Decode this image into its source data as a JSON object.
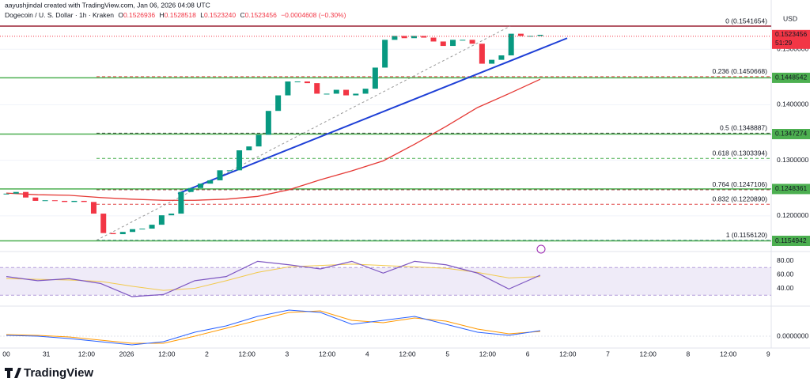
{
  "header": {
    "author_line": "aayushjindal created with TradingView.com, Jan 06, 2026 04:08 UTC",
    "symbol": "Dogecoin / U. S. Dollar · 1h · Kraken",
    "legend": [
      {
        "key": "O",
        "value": "0.1526936"
      },
      {
        "key": "H",
        "value": "0.1528518"
      },
      {
        "key": "L",
        "value": "0.1523240"
      },
      {
        "key": "C",
        "value": "0.1523456"
      }
    ],
    "change": "−0.0004608 (−0.30%)",
    "currency": "USD"
  },
  "chart_data": {
    "type": "candlestick",
    "close": [
      0.124,
      0.1243,
      0.1233,
      0.1227,
      0.1228,
      0.1227,
      0.1225,
      0.1227,
      0.1225,
      0.1204,
      0.1169,
      0.1167,
      0.1171,
      0.1176,
      0.1177,
      0.1184,
      0.1201,
      0.1204,
      0.1243,
      0.125,
      0.1258,
      0.1264,
      0.1282,
      0.1282,
      0.1318,
      0.1325,
      0.1346,
      0.1389,
      0.1417,
      0.1442,
      0.1442,
      0.1439,
      0.142,
      0.142,
      0.1427,
      0.1417,
      0.142,
      0.1429,
      0.1467,
      0.1517,
      0.1524,
      0.152,
      0.1524,
      0.1521,
      0.1514,
      0.1506,
      0.1517,
      0.1517,
      0.151,
      0.1474,
      0.1481,
      0.1489,
      0.1528,
      0.1524,
      0.1524,
      0.1526
    ],
    "up_color": "#089981",
    "down_color": "#f23645",
    "ma": {
      "color": "#e53935",
      "values": [
        0.1241,
        0.1238,
        0.1237,
        0.1233,
        0.123,
        0.1228,
        0.1228,
        0.123,
        0.1235,
        0.1247,
        0.1265,
        0.1281,
        0.1299,
        0.1329,
        0.1361,
        0.1395,
        0.142,
        0.1446
      ]
    },
    "trendline": {
      "color": "#1e3fd6",
      "values": [
        0.124,
        0.152
      ]
    },
    "ylim": [
      0.114,
      0.1546
    ],
    "yticks": [
      {
        "value": 0.15,
        "label": "0.1500000"
      },
      {
        "value": 0.14,
        "label": "0.1400000"
      },
      {
        "value": 0.13,
        "label": "0.1300000"
      },
      {
        "value": 0.12,
        "label": "0.1200000"
      }
    ],
    "grid": true,
    "levels": [
      {
        "value": 0.1448542,
        "label": "0.1448542"
      },
      {
        "value": 0.1347274,
        "label": "0.1347274"
      },
      {
        "value": 0.1248361,
        "label": "0.1248361"
      },
      {
        "value": 0.1154942,
        "label": "0.1154942"
      }
    ],
    "level_color": "#4caf50",
    "last_price": {
      "value": 0.1523456,
      "label": "0.1523456",
      "countdown": "51:29"
    },
    "fib": [
      {
        "value": 0.1541654,
        "label": "0 (0.1541654)",
        "color": "#9b2335"
      },
      {
        "value": 0.1450668,
        "label": "0.236 (0.1450668)",
        "color": "#e04a4a"
      },
      {
        "value": 0.1348887,
        "label": "0.5 (0.1348887)",
        "color": "#333333"
      },
      {
        "value": 0.1303394,
        "label": "0.618 (0.1303394)",
        "color": "#4caf50"
      },
      {
        "value": 0.1247106,
        "label": "0.764 (0.1247106)",
        "color": "#9b2335"
      },
      {
        "value": 0.122089,
        "label": "0.832 (0.1220890)",
        "color": "#e04a4a"
      },
      {
        "value": 0.115612,
        "label": "1 (0.1156120)",
        "color": "#5b7ea8"
      }
    ],
    "rsi": {
      "color": "#7e57c2",
      "ma_color": "#f2c94c",
      "values": [
        57,
        51,
        54,
        47,
        28,
        31,
        51,
        57,
        79,
        74,
        68,
        79,
        62,
        79,
        74,
        62,
        39,
        59
      ],
      "ma_values": [
        54,
        53,
        52,
        50,
        43,
        37,
        40,
        51,
        63,
        71,
        73,
        75,
        73,
        71,
        69,
        63,
        55,
        57
      ],
      "band": [
        30,
        70
      ],
      "ylim": [
        20,
        100
      ],
      "yticks": [
        {
          "value": 80,
          "label": "80.00"
        },
        {
          "value": 60,
          "label": "60.00"
        },
        {
          "value": 40,
          "label": "40.00"
        }
      ]
    },
    "macd": {
      "macd_color": "#2962ff",
      "signal_color": "#ff9800",
      "macd": [
        0.0001,
        0,
        -0.0003,
        -0.0007,
        -0.0011,
        -0.0007,
        0.0005,
        0.0013,
        0.0025,
        0.0033,
        0.003,
        0.0015,
        0.002,
        0.0025,
        0.0015,
        0.0005,
        0.0001,
        0.0007
      ],
      "signal": [
        0.0002,
        0.0001,
        -0.0001,
        -0.0005,
        -0.0009,
        -0.0009,
        0,
        0.001,
        0.002,
        0.003,
        0.0032,
        0.002,
        0.0017,
        0.0023,
        0.0019,
        0.0009,
        0.0003,
        0.0006
      ],
      "ylim": [
        -0.0015,
        0.0035
      ],
      "yticks": [
        {
          "value": 0,
          "label": "0.0000000"
        }
      ]
    },
    "time_labels": [
      "00",
      "31",
      "12:00",
      "2026",
      "12:00",
      "2",
      "12:00",
      "3",
      "12:00",
      "4",
      "12:00",
      "5",
      "12:00",
      "6",
      "12:00",
      "7",
      "12:00",
      "8",
      "12:00",
      "9"
    ]
  },
  "footer": {
    "brand": "TradingView"
  }
}
